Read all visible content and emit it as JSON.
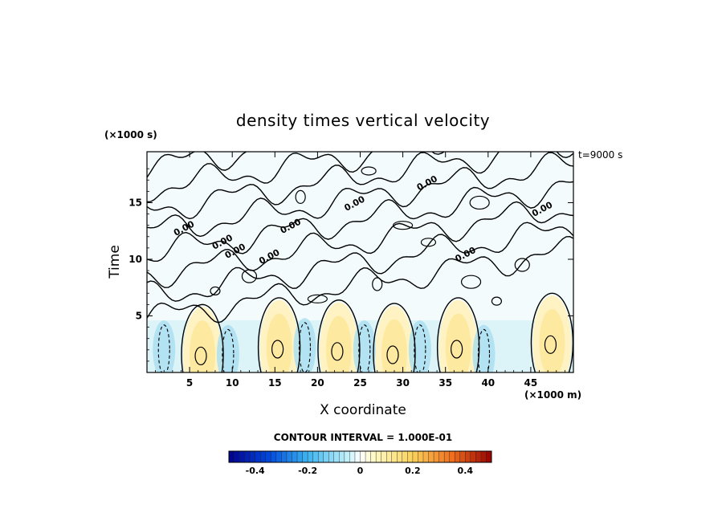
{
  "chart_data": {
    "type": "heatmap",
    "title": "density times vertical velocity",
    "xlabel": "X coordinate",
    "ylabel": "Time",
    "x_unit_label": "(×1000 m)",
    "y_unit_label": "(×1000 s)",
    "time_stamp": "t=9000 s",
    "xlim": [
      0,
      50
    ],
    "ylim": [
      0,
      19.5
    ],
    "x_ticks": [
      5,
      10,
      15,
      20,
      25,
      30,
      35,
      40,
      45
    ],
    "y_ticks": [
      5,
      10,
      15
    ],
    "contour_interval_text": "CONTOUR INTERVAL = 1.000E-01",
    "contour_label": "0.00",
    "colorbar": {
      "min": -0.5,
      "max": 0.5,
      "ticks": [
        -0.4,
        -0.2,
        0,
        0.2,
        0.4
      ],
      "tick_labels": [
        "-0.4",
        "-0.2",
        "0",
        "0.2",
        "0.4"
      ]
    },
    "positive_cells": [
      {
        "x": 6.5,
        "t": 1.6,
        "peak": 0.1
      },
      {
        "x": 15.5,
        "t": 2.2,
        "peak": 0.2
      },
      {
        "x": 22.5,
        "t": 2.0,
        "peak": 0.2
      },
      {
        "x": 29.0,
        "t": 1.7,
        "peak": 0.2
      },
      {
        "x": 36.5,
        "t": 2.2,
        "peak": 0.2
      },
      {
        "x": 47.5,
        "t": 2.6,
        "peak": 0.2
      }
    ],
    "negative_cells": [
      {
        "x": 2.0,
        "t": 2.0,
        "peak": -0.1
      },
      {
        "x": 9.5,
        "t": 1.6,
        "peak": -0.1
      },
      {
        "x": 18.5,
        "t": 2.2,
        "peak": -0.1
      },
      {
        "x": 25.5,
        "t": 2.0,
        "peak": -0.1
      },
      {
        "x": 32.0,
        "t": 2.0,
        "peak": -0.1
      },
      {
        "x": 39.5,
        "t": 1.6,
        "peak": -0.1
      }
    ],
    "zero_contour_label_positions": [
      {
        "x": 4.5,
        "t": 12.5
      },
      {
        "x": 9.0,
        "t": 11.3
      },
      {
        "x": 10.5,
        "t": 10.5
      },
      {
        "x": 14.5,
        "t": 10.0
      },
      {
        "x": 17.0,
        "t": 12.7
      },
      {
        "x": 24.5,
        "t": 14.7
      },
      {
        "x": 33.0,
        "t": 16.5
      },
      {
        "x": 37.5,
        "t": 10.2
      },
      {
        "x": 46.5,
        "t": 14.2
      }
    ],
    "colors": {
      "neg_strong": "#0000a0",
      "neg_weak": "#c8ecf4",
      "zero": "#ffffff",
      "pos_weak": "#fff4b8",
      "pos_strong": "#a00000",
      "field_background": "#f3fbfc"
    }
  }
}
